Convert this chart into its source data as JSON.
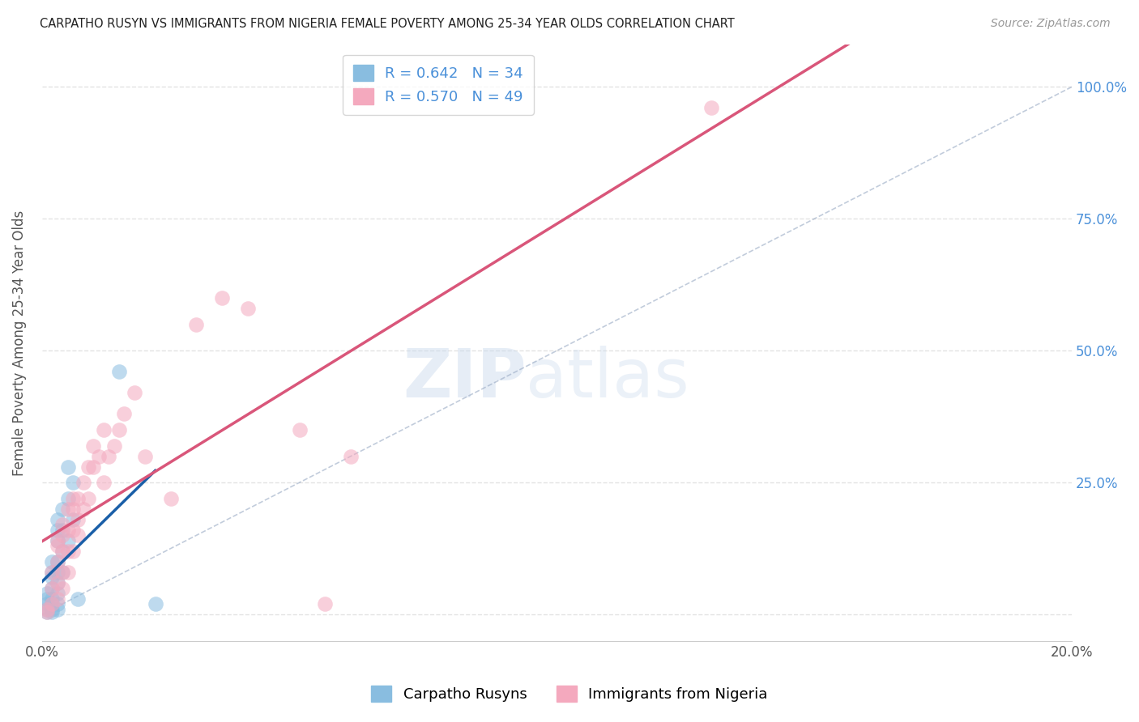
{
  "title": "CARPATHO RUSYN VS IMMIGRANTS FROM NIGERIA FEMALE POVERTY AMONG 25-34 YEAR OLDS CORRELATION CHART",
  "source": "Source: ZipAtlas.com",
  "ylabel": "Female Poverty Among 25-34 Year Olds",
  "xlim": [
    0.0,
    0.2
  ],
  "ylim": [
    -0.05,
    1.08
  ],
  "xticks": [
    0.0,
    0.05,
    0.1,
    0.15,
    0.2
  ],
  "yticks": [
    0.0,
    0.25,
    0.5,
    0.75,
    1.0
  ],
  "ytick_labels": [
    "",
    "25.0%",
    "50.0%",
    "75.0%",
    "100.0%"
  ],
  "blue_R": 0.642,
  "blue_N": 34,
  "pink_R": 0.57,
  "pink_N": 49,
  "blue_color": "#89bde0",
  "pink_color": "#f4a9be",
  "blue_line_color": "#1a5fa8",
  "pink_line_color": "#d9567a",
  "blue_scatter": [
    [
      0.001,
      0.005
    ],
    [
      0.001,
      0.01
    ],
    [
      0.001,
      0.02
    ],
    [
      0.001,
      0.03
    ],
    [
      0.001,
      0.04
    ],
    [
      0.002,
      0.005
    ],
    [
      0.002,
      0.01
    ],
    [
      0.002,
      0.02
    ],
    [
      0.002,
      0.03
    ],
    [
      0.002,
      0.05
    ],
    [
      0.002,
      0.07
    ],
    [
      0.002,
      0.08
    ],
    [
      0.002,
      0.1
    ],
    [
      0.003,
      0.01
    ],
    [
      0.003,
      0.02
    ],
    [
      0.003,
      0.04
    ],
    [
      0.003,
      0.06
    ],
    [
      0.003,
      0.08
    ],
    [
      0.003,
      0.1
    ],
    [
      0.003,
      0.14
    ],
    [
      0.003,
      0.16
    ],
    [
      0.003,
      0.18
    ],
    [
      0.004,
      0.08
    ],
    [
      0.004,
      0.12
    ],
    [
      0.004,
      0.16
    ],
    [
      0.004,
      0.2
    ],
    [
      0.005,
      0.14
    ],
    [
      0.005,
      0.22
    ],
    [
      0.005,
      0.28
    ],
    [
      0.006,
      0.18
    ],
    [
      0.006,
      0.25
    ],
    [
      0.007,
      0.03
    ],
    [
      0.015,
      0.46
    ],
    [
      0.022,
      0.02
    ]
  ],
  "pink_scatter": [
    [
      0.001,
      0.005
    ],
    [
      0.001,
      0.01
    ],
    [
      0.002,
      0.02
    ],
    [
      0.002,
      0.05
    ],
    [
      0.002,
      0.08
    ],
    [
      0.003,
      0.03
    ],
    [
      0.003,
      0.06
    ],
    [
      0.003,
      0.1
    ],
    [
      0.003,
      0.13
    ],
    [
      0.003,
      0.14
    ],
    [
      0.004,
      0.05
    ],
    [
      0.004,
      0.08
    ],
    [
      0.004,
      0.12
    ],
    [
      0.004,
      0.15
    ],
    [
      0.004,
      0.17
    ],
    [
      0.005,
      0.08
    ],
    [
      0.005,
      0.12
    ],
    [
      0.005,
      0.16
    ],
    [
      0.005,
      0.2
    ],
    [
      0.006,
      0.12
    ],
    [
      0.006,
      0.16
    ],
    [
      0.006,
      0.2
    ],
    [
      0.006,
      0.22
    ],
    [
      0.007,
      0.15
    ],
    [
      0.007,
      0.18
    ],
    [
      0.007,
      0.22
    ],
    [
      0.008,
      0.2
    ],
    [
      0.008,
      0.25
    ],
    [
      0.009,
      0.22
    ],
    [
      0.009,
      0.28
    ],
    [
      0.01,
      0.28
    ],
    [
      0.01,
      0.32
    ],
    [
      0.011,
      0.3
    ],
    [
      0.012,
      0.25
    ],
    [
      0.012,
      0.35
    ],
    [
      0.013,
      0.3
    ],
    [
      0.014,
      0.32
    ],
    [
      0.015,
      0.35
    ],
    [
      0.016,
      0.38
    ],
    [
      0.018,
      0.42
    ],
    [
      0.02,
      0.3
    ],
    [
      0.025,
      0.22
    ],
    [
      0.03,
      0.55
    ],
    [
      0.035,
      0.6
    ],
    [
      0.04,
      0.58
    ],
    [
      0.05,
      0.35
    ],
    [
      0.055,
      0.02
    ],
    [
      0.06,
      0.3
    ],
    [
      0.13,
      0.96
    ]
  ],
  "ref_line": [
    [
      0.0,
      0.0
    ],
    [
      0.2,
      1.0
    ]
  ],
  "background_color": "#ffffff",
  "grid_color": "#dddddd",
  "watermark_zip": "ZIP",
  "watermark_atlas": "atlas",
  "legend_label_blue": "Carpatho Rusyns",
  "legend_label_pink": "Immigrants from Nigeria"
}
